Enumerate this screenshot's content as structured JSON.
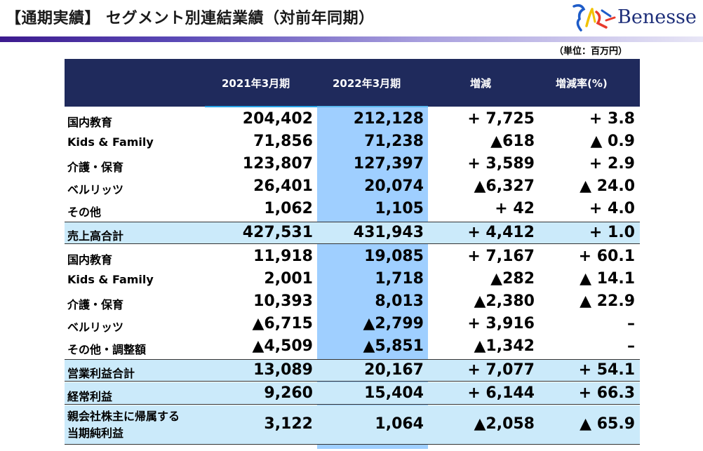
{
  "title": "【通期実績】 セグメント別連結業績（対前年同期）",
  "logo": {
    "text": "Benesse"
  },
  "unit": "（単位：百万円）",
  "headers": {
    "col1": "2021年3月期",
    "col2": "2022年3月期",
    "col3": "増減",
    "col4": "増減率(%)"
  },
  "rows": [
    {
      "label": "国内教育",
      "v1": "204,402",
      "v2": "212,128",
      "d": "+ 7,725",
      "r": "+ 3.8"
    },
    {
      "label": "Kids & Family",
      "v1": "71,856",
      "v2": "71,238",
      "d": "▲618",
      "r": "▲ 0.9"
    },
    {
      "label": "介護・保育",
      "v1": "123,807",
      "v2": "127,397",
      "d": "+ 3,589",
      "r": "+ 2.9"
    },
    {
      "label": "ベルリッツ",
      "v1": "26,401",
      "v2": "20,074",
      "d": "▲6,327",
      "r": "▲ 24.0"
    },
    {
      "label": "その他",
      "v1": "1,062",
      "v2": "1,105",
      "d": "+ 42",
      "r": "+ 4.0"
    },
    {
      "label": "売上高合計",
      "v1": "427,531",
      "v2": "431,943",
      "d": "+ 4,412",
      "r": "+ 1.0"
    },
    {
      "label": "国内教育",
      "v1": "11,918",
      "v2": "19,085",
      "d": "+ 7,167",
      "r": "+ 60.1"
    },
    {
      "label": "Kids & Family",
      "v1": "2,001",
      "v2": "1,718",
      "d": "▲282",
      "r": "▲ 14.1"
    },
    {
      "label": "介護・保育",
      "v1": "10,393",
      "v2": "8,013",
      "d": "▲2,380",
      "r": "▲ 22.9"
    },
    {
      "label": "ベルリッツ",
      "v1": "▲6,715",
      "v2": "▲2,799",
      "d": "+ 3,916",
      "r": "–"
    },
    {
      "label": "その他・調整額",
      "v1": "▲4,509",
      "v2": "▲5,851",
      "d": "▲1,342",
      "r": "–"
    },
    {
      "label": "営業利益合計",
      "v1": "13,089",
      "v2": "20,167",
      "d": "+ 7,077",
      "r": "+ 54.1"
    },
    {
      "label": "経常利益",
      "v1": "9,260",
      "v2": "15,404",
      "d": "+ 6,144",
      "r": "+ 66.3"
    },
    {
      "label": "親会社株主に帰属する",
      "label2": "当期純利益",
      "v1": "3,122",
      "v2": "1,064",
      "d": "▲2,058",
      "r": "▲ 65.9"
    }
  ]
}
